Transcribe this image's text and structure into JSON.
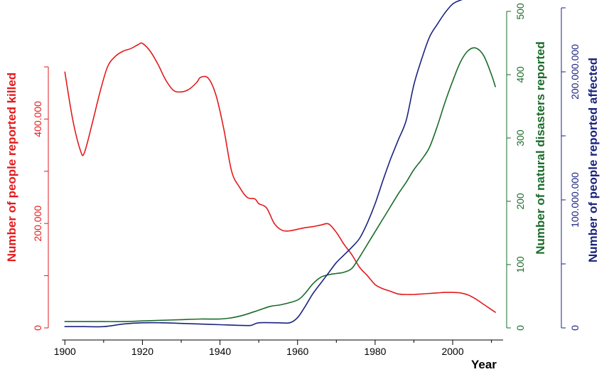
{
  "chart_data": {
    "type": "line",
    "xlabel": "Year",
    "xlim": [
      1895,
      2013
    ],
    "x_ticks": [
      1900,
      1920,
      1940,
      1960,
      1980,
      2000
    ],
    "x_tick_labels": [
      "1900",
      "1920",
      "1940",
      "1960",
      "1980",
      "2000"
    ],
    "axes": {
      "killed": {
        "label": "Number of people reported killed",
        "ylim": [
          0,
          500000
        ],
        "ticks": [
          0,
          100000,
          200000,
          300000,
          400000,
          500000
        ],
        "labeled_ticks": [
          0,
          200000,
          400000
        ],
        "tick_labels": [
          "0",
          "200.000",
          "400.000"
        ],
        "color": "#e31a1c"
      },
      "disasters": {
        "label": "Number of natural disasters reported",
        "ylim": [
          0,
          500
        ],
        "ticks": [
          0,
          100,
          200,
          300,
          400,
          500
        ],
        "tick_labels": [
          "0",
          "100",
          "200",
          "300",
          "400",
          "500"
        ],
        "color": "#1a6b2a"
      },
      "affected": {
        "label": "Number of people reported affected",
        "ylim": [
          0,
          250000000
        ],
        "ticks": [
          0,
          50000000,
          100000000,
          150000000,
          200000000,
          250000000
        ],
        "labeled_ticks": [
          0,
          100000000,
          200000000
        ],
        "tick_labels": [
          "0",
          "100.000.000",
          "200.000.000"
        ],
        "color": "#1a237e"
      }
    },
    "series": [
      {
        "axis": "killed",
        "color": "#e31a1c",
        "x": [
          1900,
          1902,
          1904,
          1905,
          1907,
          1909,
          1911,
          1913,
          1915,
          1917,
          1919,
          1920,
          1922,
          1924,
          1926,
          1928,
          1930,
          1932,
          1934,
          1935,
          1937,
          1939,
          1941,
          1943,
          1945,
          1947,
          1949,
          1950,
          1952,
          1954,
          1956,
          1958,
          1960,
          1962,
          1964,
          1966,
          1968,
          1970,
          1972,
          1974,
          1976,
          1978,
          1980,
          1982,
          1984,
          1986,
          1988,
          1990,
          1992,
          1994,
          1996,
          1998,
          2000,
          2002,
          2004,
          2006,
          2008,
          2010,
          2011
        ],
        "y": [
          490000,
          400000,
          340000,
          335000,
          390000,
          450000,
          500000,
          520000,
          530000,
          535000,
          543000,
          545000,
          530000,
          505000,
          475000,
          455000,
          452000,
          457000,
          470000,
          480000,
          478000,
          445000,
          380000,
          300000,
          270000,
          250000,
          247000,
          238000,
          230000,
          200000,
          187000,
          186000,
          189000,
          192000,
          194000,
          197000,
          199000,
          183000,
          160000,
          140000,
          116000,
          100000,
          83000,
          75000,
          70000,
          65000,
          64000,
          64000,
          65000,
          66000,
          67000,
          68000,
          68000,
          67000,
          63000,
          55000,
          45000,
          35000,
          30000
        ]
      },
      {
        "axis": "disasters",
        "color": "#1a6b2a",
        "x": [
          1900,
          1905,
          1910,
          1915,
          1920,
          1925,
          1930,
          1935,
          1940,
          1943,
          1946,
          1950,
          1953,
          1956,
          1960,
          1962,
          1964,
          1966,
          1968,
          1970,
          1972,
          1974,
          1976,
          1978,
          1980,
          1982,
          1984,
          1986,
          1988,
          1990,
          1992,
          1994,
          1996,
          1998,
          2000,
          2002,
          2004,
          2006,
          2008,
          2010,
          2011
        ],
        "y": [
          10,
          10,
          10,
          10,
          11,
          12,
          13,
          14,
          14,
          16,
          20,
          28,
          34,
          37,
          44,
          55,
          70,
          80,
          84,
          86,
          88,
          94,
          112,
          132,
          152,
          172,
          192,
          212,
          230,
          250,
          266,
          285,
          318,
          356,
          390,
          420,
          438,
          442,
          430,
          400,
          381
        ]
      },
      {
        "axis": "affected",
        "color": "#1a237e",
        "x": [
          1900,
          1905,
          1910,
          1915,
          1920,
          1925,
          1930,
          1935,
          1940,
          1945,
          1948,
          1950,
          1955,
          1958,
          1960,
          1962,
          1964,
          1966,
          1968,
          1970,
          1972,
          1974,
          1976,
          1978,
          1980,
          1982,
          1984,
          1986,
          1988,
          1990,
          1992,
          1994,
          1996,
          1998,
          2000,
          2002,
          2004,
          2006,
          2008,
          2010,
          2011
        ],
        "y": [
          1000000,
          1000000,
          1000000,
          3000000,
          4000000,
          4000000,
          3500000,
          3000000,
          2500000,
          2000000,
          2000000,
          4000000,
          4000000,
          4000000,
          8000000,
          17000000,
          27000000,
          35000000,
          43000000,
          51000000,
          57000000,
          63000000,
          70000000,
          82000000,
          97000000,
          115000000,
          132000000,
          147000000,
          162000000,
          190000000,
          210000000,
          227000000,
          237000000,
          246000000,
          253000000,
          256000000,
          258000000,
          263000000,
          268000000,
          272000000,
          275000000
        ]
      }
    ]
  }
}
